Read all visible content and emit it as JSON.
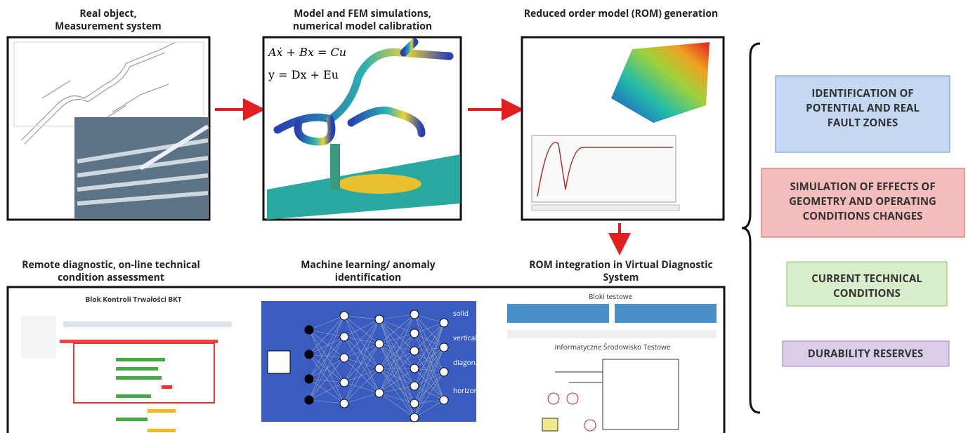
{
  "panels": [
    {
      "caption": [
        "Real object,",
        "Measurement system"
      ]
    },
    {
      "caption": [
        "Model and FEM simulations,",
        "numerical model calibration"
      ],
      "equations": [
        "Aẋ + Bx = Cu",
        "y = Dx + Eu"
      ]
    },
    {
      "caption": [
        "Reduced order model (ROM) generation"
      ]
    },
    {
      "caption": [
        "Remote diagnostic, on-line technical",
        "condition assessment"
      ],
      "screen_title": "Blok Kontroli Trwałości BKT"
    },
    {
      "caption": [
        "Machine learning/ anomaly",
        "identification"
      ],
      "classes": [
        "solid",
        "vertical",
        "diagonal",
        "horizontal"
      ]
    },
    {
      "caption": [
        "ROM  integration in Virtual Diagnostic",
        "System"
      ],
      "screen_title": "Bloki testowe",
      "screen_subtitle": "Informatyczne Środowisko Testowe"
    }
  ],
  "outcomes": [
    {
      "lines": [
        "IDENTIFICATION OF",
        "POTENTIAL AND REAL",
        "FAULT ZONES"
      ]
    },
    {
      "lines": [
        "SIMULATION OF EFFECTS OF",
        "GEOMETRY AND OPERATING",
        "CONDITIONS CHANGES"
      ]
    },
    {
      "lines": [
        "CURRENT TECHNICAL",
        "CONDITIONS"
      ]
    },
    {
      "lines": [
        "DURABILITY RESERVES"
      ]
    }
  ]
}
